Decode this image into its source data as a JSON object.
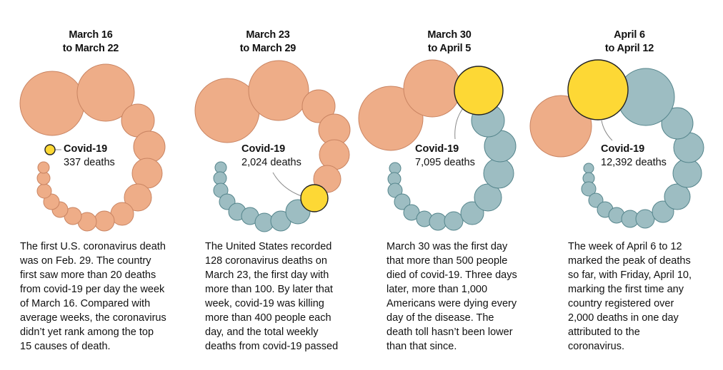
{
  "chart_data": {
    "type": "bubble",
    "title": "",
    "colors": {
      "other_causes_before": "#eead88",
      "covid19": "#fdd835",
      "other_causes_after": "#9dbdc2"
    },
    "panels": [
      {
        "title_line1": "March 16",
        "title_line2": "to March 22",
        "covid_label": "Covid-19",
        "covid_value": "337 deaths",
        "covid_deaths": 337,
        "covid_rank": 16,
        "description": [
          "The first U.S. coronavirus death",
          "was on Feb. 29. The country",
          "first saw more than 20 deaths",
          "from covid-19 per day the week",
          "of March 16. Compared with",
          "average weeks, the coronavirus",
          "didn’t yet rank among the top",
          "15 causes of death."
        ]
      },
      {
        "title_line1": "March 23",
        "title_line2": "to March 29",
        "covid_label": "Covid-19",
        "covid_value": "2,024 deaths",
        "covid_deaths": 2024,
        "covid_rank": 7,
        "description": [
          "The United States recorded",
          "128 coronavirus deaths on",
          "March 23, the first day with",
          "more than 100. By later that",
          "week, covid-19 was killing",
          "more than 400 people each",
          "day, and the total weekly",
          "deaths from covid-19 passed"
        ]
      },
      {
        "title_line1": "March 30",
        "title_line2": "to April 5",
        "covid_label": "Covid-19",
        "covid_value": "7,095 deaths",
        "covid_deaths": 7095,
        "covid_rank": 3,
        "description": [
          "March 30 was the first day",
          "that more than 500 people",
          "died of covid-19. Three days",
          "later, more than 1,000",
          "Americans were dying every",
          "day of the disease. The",
          "death toll hasn’t been lower",
          "than that since."
        ]
      },
      {
        "title_line1": "April 6",
        "title_line2": "to April 12",
        "covid_label": "Covid-19",
        "covid_value": "12,392 deaths",
        "covid_deaths": 12392,
        "covid_rank": 2,
        "description": [
          "The week of April 6 to 12",
          "marked the peak of deaths",
          "so far, with Friday, April 10,",
          "marking the first time any",
          "country registered over",
          "2,000 deaths in one day",
          "attributed to the",
          "coronavirus."
        ]
      }
    ]
  }
}
